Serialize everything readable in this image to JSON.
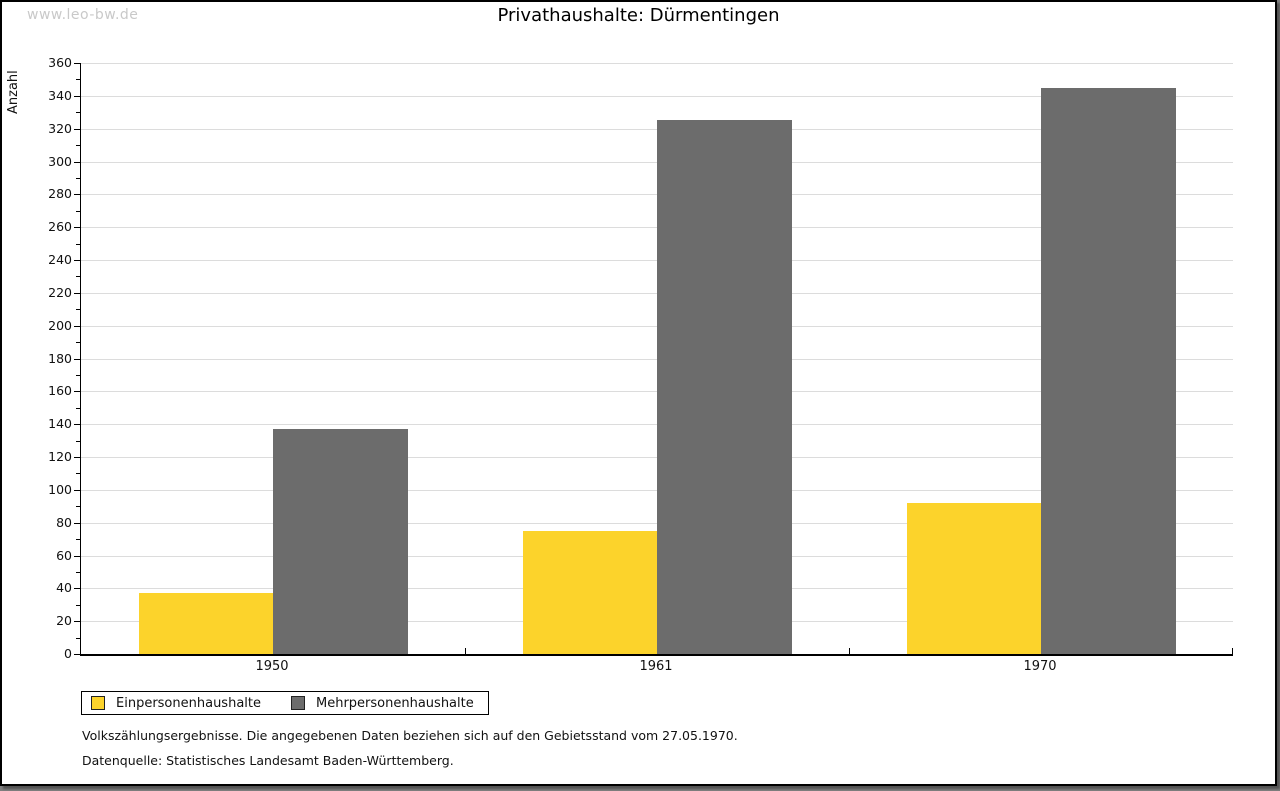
{
  "watermark": "www.leo-bw.de",
  "title": "Privathaushalte: Dürmentingen",
  "footnotes": [
    "Volkszählungsergebnisse. Die angegebenen Daten beziehen sich auf den Gebietsstand vom 27.05.1970.",
    "Datenquelle: Statistisches Landesamt Baden-Württemberg."
  ],
  "colors": {
    "series_yellow": "#fcd32b",
    "series_gray": "#6c6c6c",
    "gridline": "#dcdcdc",
    "watermark": "#c9c9c9",
    "page_background": "#ffffff",
    "outer_background": "#7f7f7f"
  },
  "chart_data": {
    "type": "bar",
    "title": "Privathaushalte: Dürmentingen",
    "categories": [
      "1950",
      "1961",
      "1970"
    ],
    "series": [
      {
        "name": "Einpersonenhaushalte",
        "color": "#fcd32b",
        "values": [
          37,
          75,
          92
        ]
      },
      {
        "name": "Mehrpersonenhaushalte",
        "color": "#6c6c6c",
        "values": [
          137,
          325,
          345
        ]
      }
    ],
    "xlabel": "",
    "ylabel": "Anzahl",
    "ylim": [
      0,
      360
    ],
    "y_major_step": 20,
    "y_minor_step": 10,
    "grid": true,
    "legend_position": "bottom-left"
  }
}
